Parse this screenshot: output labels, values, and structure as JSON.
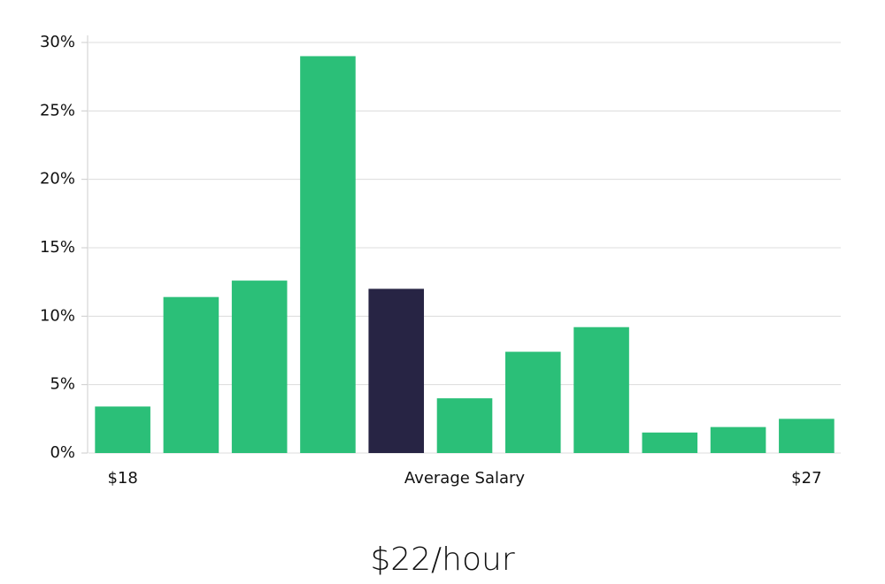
{
  "chart_data": {
    "type": "bar",
    "categories": [
      "$18",
      null,
      null,
      null,
      null,
      "Average Salary",
      null,
      null,
      null,
      null,
      "$27"
    ],
    "values": [
      3.4,
      11.4,
      12.6,
      29,
      12,
      4,
      7.4,
      9.2,
      1.5,
      1.9,
      2.5
    ],
    "colors": [
      "#2bbf78",
      "#2bbf78",
      "#2bbf78",
      "#2bbf78",
      "#272444",
      "#2bbf78",
      "#2bbf78",
      "#2bbf78",
      "#2bbf78",
      "#2bbf78",
      "#2bbf78"
    ],
    "ylim": [
      0,
      30
    ],
    "yticks": [
      {
        "value": 0,
        "label": "0%"
      },
      {
        "value": 5,
        "label": "5%"
      },
      {
        "value": 10,
        "label": "10%"
      },
      {
        "value": 15,
        "label": "15%"
      },
      {
        "value": 20,
        "label": "20%"
      },
      {
        "value": 25,
        "label": "25%"
      },
      {
        "value": 30,
        "label": "30%"
      }
    ],
    "grid": true,
    "annotation": "$22/hour"
  }
}
